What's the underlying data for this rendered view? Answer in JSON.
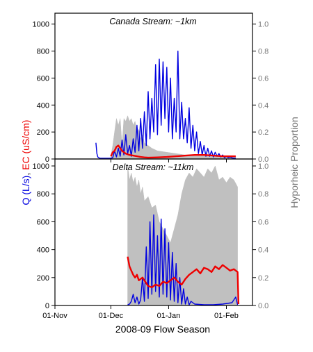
{
  "colors": {
    "discharge": "#0000e0",
    "conductivity": "#ee0000",
    "hyporheic": "#c0c0c0",
    "right_axis_text": "#777777",
    "frame": "#000000"
  },
  "axis_labels": {
    "xlabel": "2008-09 Flow Season",
    "ylabel_left_q": "Q (L/s)",
    "ylabel_left_sep": ",",
    "ylabel_left_ec": "EC (uS/cm)",
    "ylabel_right": "Hyporheic Proportion"
  },
  "chart_data": [
    {
      "type": "line",
      "title": "Canada Stream: ~1km",
      "xlabel": "2008-09 Flow Season",
      "ylabel": "Q (L/s), EC (uS/cm)",
      "ylabel_right": "Hyporheic Proportion",
      "x_units": "days since 01-Nov-2008",
      "xlim": [
        0,
        106
      ],
      "ylim": [
        0,
        1050
      ],
      "ylim_right": [
        0,
        1.05
      ],
      "x_ticks": [
        0,
        30,
        61,
        92
      ],
      "x_tick_labels": [
        "01-Nov",
        "01-Dec",
        "01-Jan",
        "01-Feb"
      ],
      "y_ticks": [
        0,
        200,
        400,
        600,
        800,
        1000
      ],
      "y_tick_labels": [
        "0",
        "200",
        "400",
        "600",
        "800",
        "1000"
      ],
      "y_right_ticks": [
        0,
        0.2,
        0.4,
        0.6,
        0.8,
        1.0
      ],
      "y_right_tick_labels": [
        "0.0",
        "0.2",
        "0.4",
        "0.6",
        "0.8",
        "1.0"
      ],
      "series": [
        {
          "name": "Q (L/s)",
          "axis": "left",
          "style": "line",
          "x": [
            22,
            22.5,
            23,
            24,
            25,
            27,
            30,
            31,
            32,
            33,
            34,
            35,
            36,
            37,
            38,
            39,
            40,
            41,
            42,
            43,
            44,
            45,
            46,
            47,
            48,
            49,
            50,
            51,
            52,
            53,
            54,
            55,
            56,
            57,
            58,
            59,
            60,
            61,
            62,
            63,
            64,
            65,
            66,
            67,
            68,
            69,
            70,
            71,
            72,
            73,
            74,
            75,
            76,
            77,
            78,
            79,
            80,
            81,
            82,
            83,
            84,
            85,
            86,
            87,
            88,
            89,
            90,
            91,
            92,
            93,
            94,
            95,
            96,
            97
          ],
          "y": [
            120,
            40,
            15,
            5,
            5,
            5,
            5,
            10,
            60,
            15,
            80,
            20,
            140,
            30,
            180,
            40,
            100,
            20,
            150,
            50,
            250,
            60,
            300,
            80,
            350,
            100,
            500,
            150,
            450,
            200,
            700,
            180,
            740,
            250,
            720,
            300,
            680,
            200,
            600,
            150,
            450,
            200,
            800,
            150,
            420,
            150,
            300,
            120,
            380,
            80,
            250,
            60,
            200,
            40,
            130,
            30,
            100,
            20,
            80,
            20,
            60,
            15,
            50,
            20,
            40,
            15,
            30,
            10,
            20,
            10,
            15,
            8,
            5,
            5
          ]
        },
        {
          "name": "EC (uS/cm)",
          "axis": "left",
          "style": "line",
          "x": [
            30,
            31,
            32,
            33,
            34,
            35,
            36,
            37,
            38,
            40,
            42,
            44,
            46,
            48,
            50,
            55,
            60,
            65,
            70,
            75,
            80,
            85,
            90,
            95,
            97
          ],
          "y": [
            20,
            50,
            60,
            90,
            100,
            80,
            60,
            50,
            40,
            30,
            25,
            20,
            15,
            12,
            10,
            12,
            15,
            20,
            25,
            30,
            30,
            25,
            20,
            20,
            20
          ]
        },
        {
          "name": "Hyporheic Proportion",
          "axis": "right",
          "style": "band",
          "x": [
            30,
            31,
            32,
            33,
            34,
            35,
            36,
            37,
            38,
            39,
            40,
            41,
            42,
            43,
            44,
            45,
            46,
            47,
            48,
            50,
            52,
            55,
            60,
            65,
            70,
            75,
            80,
            85,
            90,
            95,
            97
          ],
          "y": [
            0.02,
            0.1,
            0.2,
            0.3,
            0.25,
            0.3,
            0.1,
            0.3,
            0.28,
            0.32,
            0.28,
            0.3,
            0.25,
            0.28,
            0.2,
            0.22,
            0.15,
            0.18,
            0.12,
            0.1,
            0.08,
            0.06,
            0.05,
            0.04,
            0.03,
            0.03,
            0.03,
            0.02,
            0.02,
            0.02,
            0.02
          ]
        }
      ]
    },
    {
      "type": "line",
      "title": "Delta Stream: ~11km",
      "xlabel": "2008-09 Flow Season",
      "ylabel": "Q (L/s), EC (uS/cm)",
      "ylabel_right": "Hyporheic Proportion",
      "x_units": "days since 01-Nov-2008",
      "xlim": [
        0,
        106
      ],
      "ylim": [
        0,
        1020
      ],
      "ylim_right": [
        0,
        1.02
      ],
      "x_ticks": [
        0,
        30,
        61,
        92
      ],
      "x_tick_labels": [
        "01-Nov",
        "01-Dec",
        "01-Jan",
        "01-Feb"
      ],
      "y_ticks": [
        0,
        200,
        400,
        600,
        800,
        1000
      ],
      "y_tick_labels": [
        "0",
        "200",
        "400",
        "600",
        "800",
        "1000"
      ],
      "y_right_ticks": [
        0,
        0.2,
        0.4,
        0.6,
        0.8,
        1.0
      ],
      "y_right_tick_labels": [
        "0.0",
        "0.2",
        "0.4",
        "0.6",
        "0.8",
        "1.0"
      ],
      "series": [
        {
          "name": "Q (L/s)",
          "axis": "left",
          "style": "line",
          "x": [
            39,
            40,
            41,
            42,
            43,
            44,
            45,
            46,
            47,
            48,
            49,
            50,
            51,
            52,
            53,
            54,
            55,
            56,
            57,
            58,
            59,
            60,
            61,
            62,
            63,
            64,
            65,
            66,
            67,
            68,
            69,
            70,
            71,
            72,
            73,
            75,
            80,
            85,
            90,
            95,
            97,
            98
          ],
          "y": [
            5,
            10,
            30,
            80,
            20,
            60,
            10,
            40,
            200,
            30,
            420,
            50,
            600,
            80,
            650,
            100,
            500,
            60,
            620,
            80,
            550,
            60,
            450,
            40,
            380,
            30,
            300,
            20,
            200,
            10,
            120,
            10,
            60,
            5,
            30,
            10,
            5,
            5,
            10,
            20,
            60,
            5
          ]
        },
        {
          "name": "EC (uS/cm)",
          "axis": "left",
          "style": "line",
          "x": [
            39,
            40,
            41,
            42,
            43,
            44,
            45,
            47,
            50,
            52,
            54,
            56,
            58,
            60,
            62,
            64,
            66,
            68,
            70,
            72,
            74,
            76,
            78,
            80,
            82,
            84,
            86,
            88,
            90,
            92,
            94,
            96,
            98,
            98.5
          ],
          "y": [
            350,
            280,
            250,
            220,
            200,
            220,
            180,
            200,
            140,
            130,
            150,
            140,
            170,
            160,
            180,
            200,
            170,
            150,
            190,
            220,
            240,
            260,
            230,
            270,
            260,
            240,
            280,
            260,
            290,
            270,
            250,
            260,
            240,
            10
          ]
        },
        {
          "name": "Hyporheic Proportion",
          "axis": "right",
          "style": "band",
          "x": [
            39,
            40,
            41,
            42,
            43,
            44,
            45,
            46,
            47,
            48,
            50,
            52,
            54,
            56,
            58,
            60,
            62,
            64,
            66,
            68,
            70,
            72,
            74,
            76,
            78,
            80,
            82,
            84,
            86,
            88,
            90,
            92,
            94,
            96,
            98
          ],
          "y": [
            1.0,
            0.9,
            0.95,
            0.88,
            0.92,
            0.85,
            0.9,
            0.8,
            0.85,
            0.75,
            0.78,
            0.7,
            0.72,
            0.6,
            0.55,
            0.5,
            0.45,
            0.55,
            0.65,
            0.8,
            0.9,
            0.95,
            0.92,
            0.98,
            0.95,
            0.92,
            0.98,
            0.95,
            1.0,
            0.9,
            0.92,
            0.88,
            0.92,
            0.9,
            0.85
          ]
        }
      ]
    }
  ]
}
